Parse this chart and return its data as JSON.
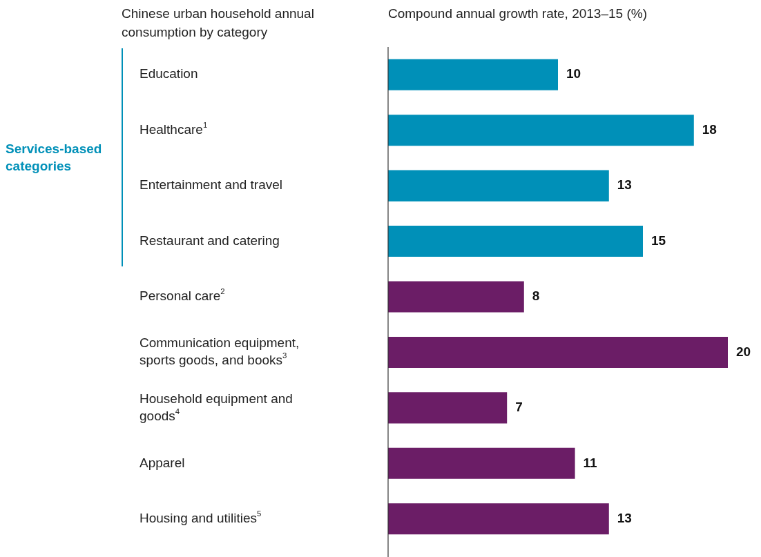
{
  "chart_data": {
    "type": "bar",
    "orientation": "horizontal",
    "ylabel": "Chinese urban household annual consumption by category",
    "xlabel": "Compound annual growth rate, 2013–15 (%)",
    "categories": [
      "Education",
      "Healthcare$^{1}$",
      "Entertainment and travel",
      "Restaurant and catering",
      "Personal care$^{2}$",
      "Communication equipment, sports goods, and books$^{3}$",
      "Household equipment and goods$^{4}$",
      "Apparel",
      "Housing and utilities$^{5}$"
    ],
    "values": [
      10,
      18,
      13,
      15,
      8,
      20,
      7,
      11,
      13
    ],
    "colors": [
      "#0090b8",
      "#0090b8",
      "#0090b8",
      "#0090b8",
      "#6b1d66",
      "#6b1d66",
      "#6b1d66",
      "#6b1d66",
      "#6b1d66"
    ],
    "data_labels": true,
    "annotations": [
      "Services-based categories"
    ]
  }
}
